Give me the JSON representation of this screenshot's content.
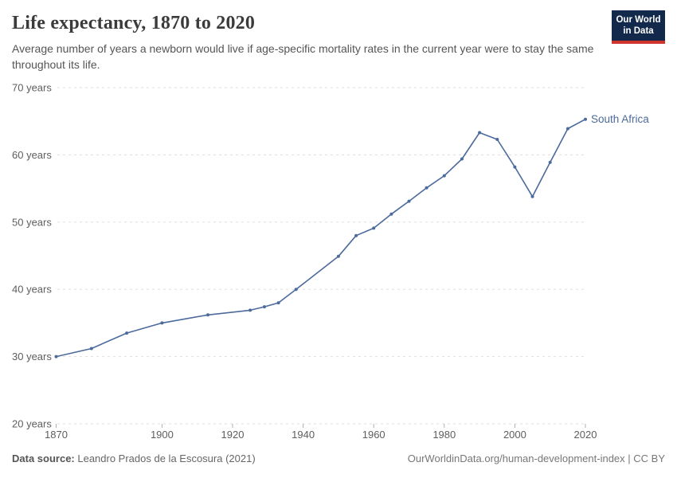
{
  "header": {
    "title": "Life expectancy, 1870 to 2020",
    "subtitle": "Average number of years a newborn would live if age-specific mortality rates in the current year were to stay the same throughout its life.",
    "logo_line1": "Our World",
    "logo_line2": "in Data"
  },
  "footer": {
    "datasource_label": "Data source:",
    "datasource_text": " Leandro Prados de la Escosura (2021)",
    "link_text": "OurWorldinData.org/human-development-index | CC BY"
  },
  "colors": {
    "line": "#4C6A9C",
    "grid": "#dddddd",
    "tick": "#b0b0b0",
    "axis_text": "#5e5e5e",
    "logo_navy": "#13294b",
    "logo_red": "#d0342c"
  },
  "chart_data": {
    "type": "line",
    "title": "Life expectancy, 1870 to 2020",
    "xlabel": "",
    "ylabel": "years",
    "xlim": [
      1870,
      2020
    ],
    "ylim": [
      20,
      70
    ],
    "grid": "horizontal-dashed",
    "legend_position": "end-of-line-label",
    "x_ticks": [
      1870,
      1900,
      1920,
      1940,
      1960,
      1980,
      2000,
      2020
    ],
    "x_tick_labels": [
      "1870",
      "1900",
      "1920",
      "1940",
      "1960",
      "1980",
      "2000",
      "2020"
    ],
    "y_ticks": [
      20,
      30,
      40,
      50,
      60,
      70
    ],
    "y_tick_labels": [
      "20 years",
      "30 years",
      "40 years",
      "50 years",
      "60 years",
      "70 years"
    ],
    "series": [
      {
        "name": "South Africa",
        "x": [
          1870,
          1880,
          1890,
          1900,
          1913,
          1925,
          1929,
          1933,
          1938,
          1950,
          1955,
          1960,
          1965,
          1970,
          1975,
          1980,
          1985,
          1990,
          1995,
          2000,
          2005,
          2010,
          2015,
          2020
        ],
        "y": [
          30.0,
          31.2,
          33.5,
          35.0,
          36.2,
          36.9,
          37.4,
          38.0,
          40.0,
          44.9,
          48.0,
          49.1,
          51.2,
          53.1,
          55.1,
          56.9,
          59.4,
          63.3,
          62.3,
          58.2,
          53.8,
          58.9,
          63.9,
          65.3
        ]
      }
    ]
  }
}
